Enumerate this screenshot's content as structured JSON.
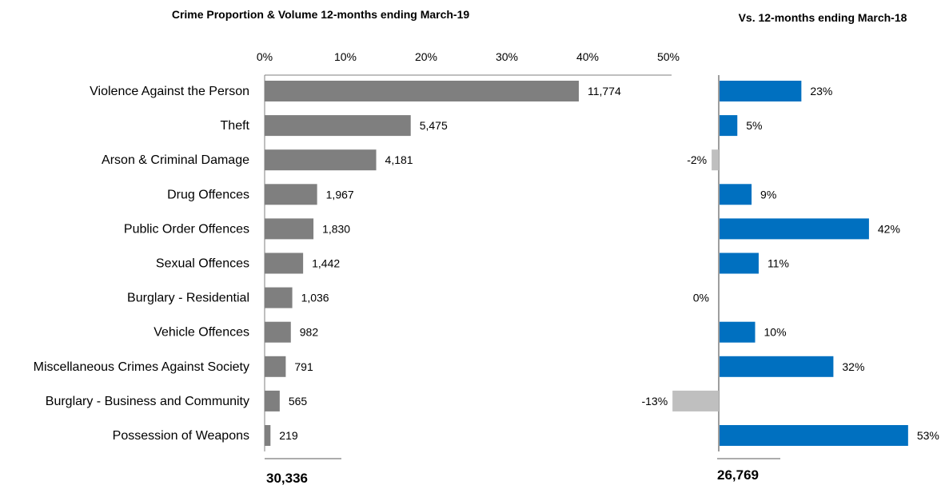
{
  "chart_data": [
    {
      "type": "bar",
      "orientation": "horizontal",
      "title": "Crime Proportion & Volume 12-months ending March-19",
      "categories": [
        "Violence Against the Person",
        "Theft",
        "Arson & Criminal Damage",
        "Drug Offences",
        "Public Order Offences",
        "Sexual Offences",
        "Burglary  - Residential",
        "Vehicle Offences",
        "Miscellaneous Crimes Against Society",
        "Burglary  - Business and Community",
        "Possession of Weapons"
      ],
      "values": [
        11774,
        5475,
        4181,
        1967,
        1830,
        1442,
        1036,
        982,
        791,
        565,
        219
      ],
      "data_labels": [
        "11,774",
        "5,475",
        "4,181",
        "1,967",
        "1,830",
        "1,442",
        "1,036",
        "982",
        "791",
        "565",
        "219"
      ],
      "value_scale": "proportion of total 30,336",
      "xlim": [
        0,
        0.5
      ],
      "xticks": [
        "0%",
        "10%",
        "20%",
        "30%",
        "40%",
        "50%"
      ],
      "total_label": "30,336",
      "bar_color": "#7f7f7f",
      "grid": false
    },
    {
      "type": "bar",
      "orientation": "horizontal",
      "title": "Vs. 12-months ending March-18",
      "categories": [
        "Violence Against the Person",
        "Theft",
        "Arson & Criminal Damage",
        "Drug Offences",
        "Public Order Offences",
        "Sexual Offences",
        "Burglary  - Residential",
        "Vehicle Offences",
        "Miscellaneous Crimes Against Society",
        "Burglary  - Business and Community",
        "Possession of Weapons"
      ],
      "values": [
        23,
        5,
        -2,
        9,
        42,
        11,
        0,
        10,
        32,
        -13,
        53
      ],
      "data_labels": [
        "23%",
        "5%",
        "-2%",
        "9%",
        "42%",
        "11%",
        "0%",
        "10%",
        "32%",
        "-13%",
        "53%"
      ],
      "unit": "%",
      "total_label": "26,769",
      "positive_color": "#0070c0",
      "negative_color": "#bfbfbf",
      "axis_color": "#7f7f7f",
      "grid": false
    }
  ]
}
